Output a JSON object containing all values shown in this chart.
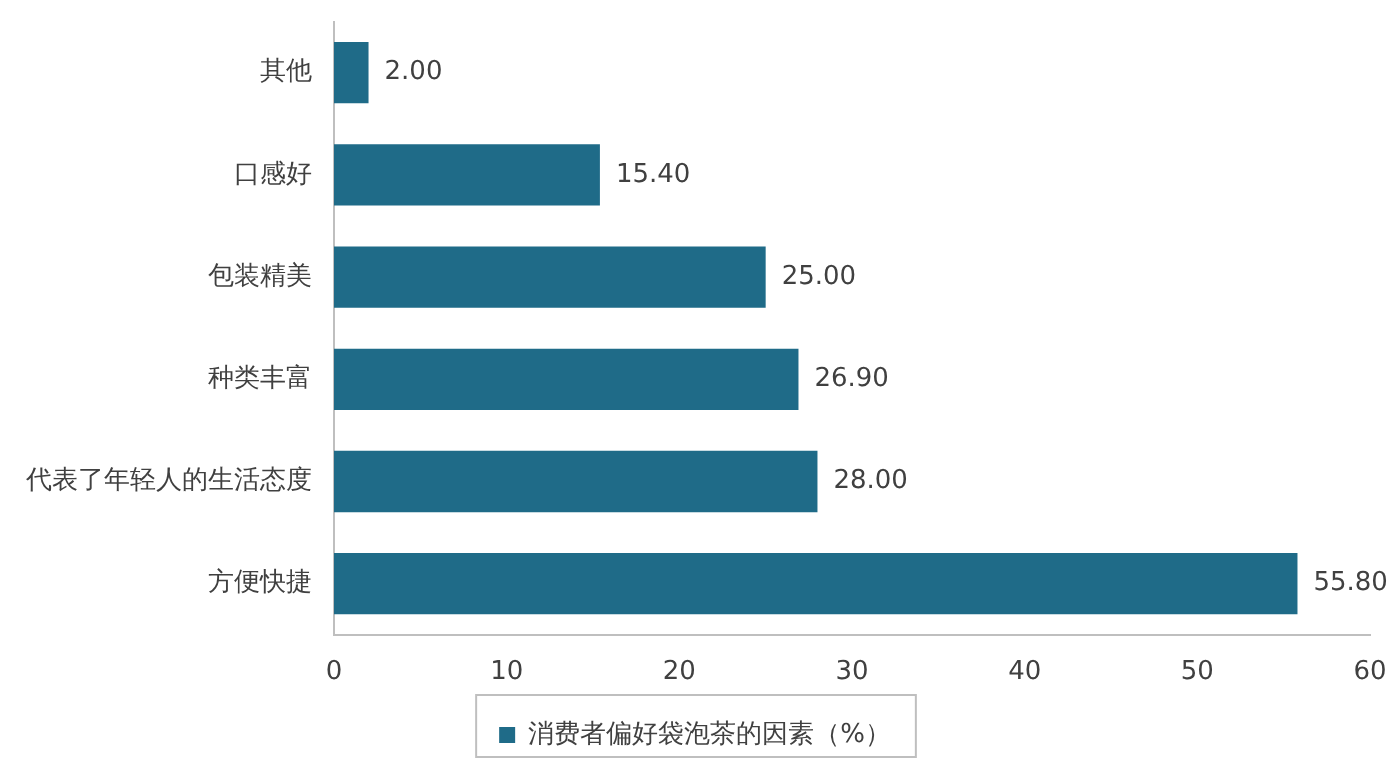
{
  "chart_data": {
    "type": "bar",
    "orientation": "horizontal",
    "categories": [
      "其他",
      "口感好",
      "包装精美",
      "种类丰富",
      "代表了年轻人的生活态度",
      "方便快捷"
    ],
    "series": [
      {
        "name": "消费者偏好袋泡茶的因素（%）",
        "color": "#1f6b88",
        "values": [
          2,
          15.4,
          25,
          26.9,
          28,
          55.8
        ]
      }
    ],
    "value_labels": [
      "2.00",
      "15.40",
      "25.00",
      "26.90",
      "28.00",
      "55.80"
    ],
    "xlim": [
      0,
      60
    ],
    "xticks": [
      0,
      10,
      20,
      30,
      40,
      50,
      60
    ],
    "grid": false,
    "legend": "bottom"
  }
}
